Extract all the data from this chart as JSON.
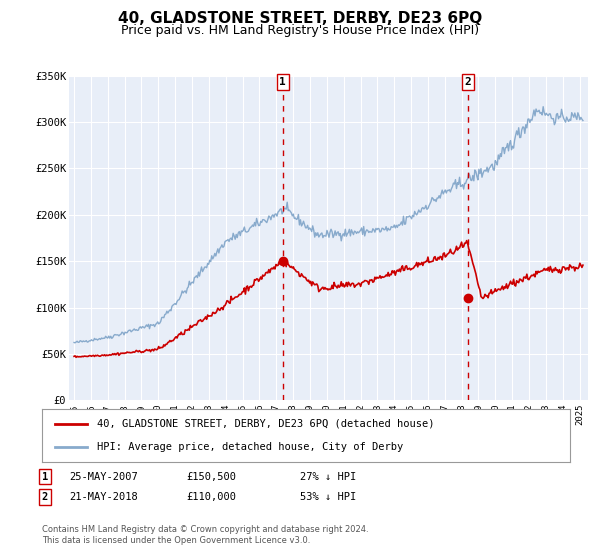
{
  "title": "40, GLADSTONE STREET, DERBY, DE23 6PQ",
  "subtitle": "Price paid vs. HM Land Registry's House Price Index (HPI)",
  "title_fontsize": 11,
  "subtitle_fontsize": 9,
  "bg_color": "#e8eef8",
  "grid_color": "#ffffff",
  "legend_label_red": "40, GLADSTONE STREET, DERBY, DE23 6PQ (detached house)",
  "legend_label_blue": "HPI: Average price, detached house, City of Derby",
  "marker1_date": 2007.39,
  "marker1_price": 150500,
  "marker1_label": "1",
  "marker2_date": 2018.39,
  "marker2_price": 110000,
  "marker2_label": "2",
  "footer": "Contains HM Land Registry data © Crown copyright and database right 2024.\nThis data is licensed under the Open Government Licence v3.0.",
  "ylim": [
    0,
    350000
  ],
  "xlim_start": 1994.7,
  "xlim_end": 2025.5,
  "red_color": "#cc0000",
  "blue_color": "#88aacc",
  "marker_color": "#cc0000",
  "yticks": [
    0,
    50000,
    100000,
    150000,
    200000,
    250000,
    300000,
    350000
  ],
  "ylabels": [
    "£0",
    "£50K",
    "£100K",
    "£150K",
    "£200K",
    "£250K",
    "£300K",
    "£350K"
  ]
}
